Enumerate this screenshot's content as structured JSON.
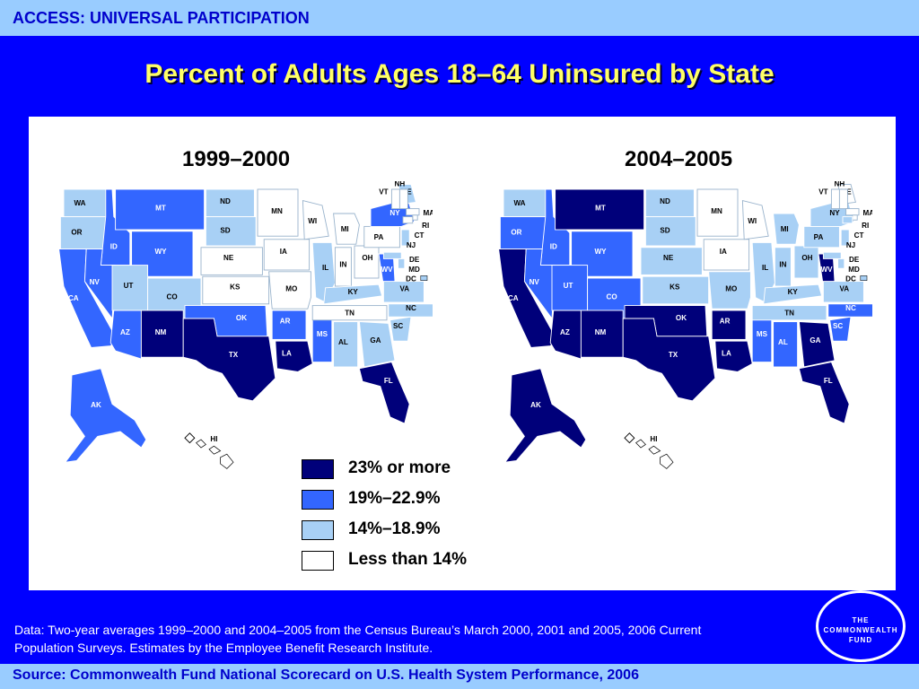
{
  "header": {
    "section": "ACCESS: UNIVERSAL PARTICIPATION"
  },
  "title": "Percent of Adults Ages 18–64 Uninsured by State",
  "colors": {
    "dark": "#00007a",
    "medium": "#3366ff",
    "light": "#a8d0f5",
    "none": "#ffffff",
    "background": "#0000ff",
    "title": "#ffff66",
    "bar": "#99ccff"
  },
  "legend": [
    {
      "label": "23% or more",
      "cat": "dark"
    },
    {
      "label": "19%–22.9%",
      "cat": "medium"
    },
    {
      "label": "14%–18.9%",
      "cat": "light"
    },
    {
      "label": "Less than 14%",
      "cat": "none"
    }
  ],
  "maps": [
    {
      "title": "1999–2000",
      "states": {
        "WA": "light",
        "OR": "light",
        "CA": "medium",
        "ID": "medium",
        "NV": "medium",
        "MT": "medium",
        "WY": "medium",
        "UT": "light",
        "CO": "light",
        "AZ": "medium",
        "NM": "dark",
        "ND": "light",
        "SD": "light",
        "NE": "none",
        "KS": "none",
        "OK": "medium",
        "TX": "dark",
        "MN": "none",
        "IA": "none",
        "MO": "none",
        "AR": "medium",
        "LA": "dark",
        "WI": "none",
        "IL": "light",
        "MS": "medium",
        "MI": "none",
        "IN": "none",
        "KY": "light",
        "TN": "none",
        "AL": "light",
        "OH": "none",
        "WV": "medium",
        "GA": "light",
        "FL": "dark",
        "SC": "light",
        "NC": "light",
        "VA": "light",
        "PA": "none",
        "NY": "medium",
        "ME": "light",
        "VT": "none",
        "NH": "none",
        "MA": "none",
        "RI": "none",
        "CT": "none",
        "NJ": "light",
        "DE": "light",
        "MD": "light",
        "DC": "light",
        "AK": "medium",
        "HI": "none"
      }
    },
    {
      "title": "2004–2005",
      "states": {
        "WA": "light",
        "OR": "medium",
        "CA": "dark",
        "ID": "medium",
        "NV": "medium",
        "MT": "dark",
        "WY": "medium",
        "UT": "medium",
        "CO": "medium",
        "AZ": "dark",
        "NM": "dark",
        "ND": "light",
        "SD": "light",
        "NE": "light",
        "KS": "light",
        "OK": "dark",
        "TX": "dark",
        "MN": "none",
        "IA": "none",
        "MO": "light",
        "AR": "dark",
        "LA": "dark",
        "WI": "none",
        "IL": "light",
        "MS": "medium",
        "MI": "light",
        "IN": "light",
        "KY": "light",
        "TN": "light",
        "AL": "medium",
        "OH": "light",
        "WV": "dark",
        "GA": "dark",
        "FL": "dark",
        "SC": "medium",
        "NC": "medium",
        "VA": "light",
        "PA": "light",
        "NY": "light",
        "ME": "none",
        "VT": "none",
        "NH": "none",
        "MA": "none",
        "RI": "none",
        "CT": "light",
        "NJ": "light",
        "DE": "light",
        "MD": "light",
        "DC": "light",
        "AK": "dark",
        "HI": "none"
      }
    }
  ],
  "note": "Data: Two-year averages 1999–2000 and 2004–2005 from the Census Bureau’s March 2000, 2001 and 2005, 2006 Current Population Surveys. Estimates by the Employee Benefit Research Institute.",
  "logo": {
    "line1": "THE",
    "line2": "COMMONWEALTH",
    "line3": "FUND"
  },
  "source": "Source: Commonwealth Fund National Scorecard on U.S. Health System Performance, 2006"
}
